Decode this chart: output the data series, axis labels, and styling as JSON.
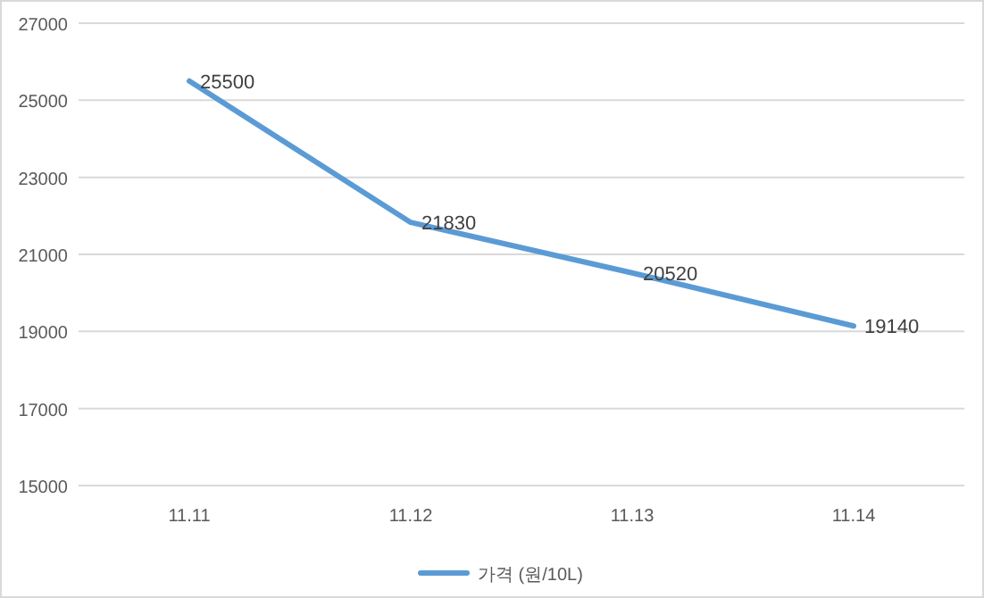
{
  "chart_data": {
    "type": "line",
    "categories": [
      "11.11",
      "11.12",
      "11.13",
      "11.14"
    ],
    "series": [
      {
        "name": "가격 (원/10L)",
        "color": "#5b9bd5",
        "values": [
          25500,
          21830,
          20520,
          19140
        ]
      }
    ],
    "ylim": [
      15000,
      27000
    ],
    "yticks": [
      15000,
      17000,
      19000,
      21000,
      23000,
      25000,
      27000
    ],
    "grid": "y",
    "legend": "bottom",
    "data_labels": true,
    "marker": "none"
  }
}
